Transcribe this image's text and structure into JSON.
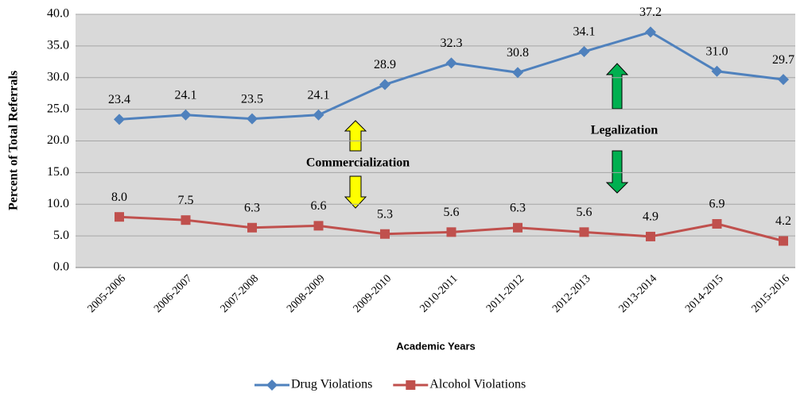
{
  "chart_data": {
    "type": "line",
    "y_label": "Percent of Total Referrals",
    "x_label": "Academic Years",
    "categories": [
      "2005-2006",
      "2006-2007",
      "2007-2008",
      "2008-2009",
      "2009-2010",
      "2010-2011",
      "2011-2012",
      "2012-2013",
      "2013-2014",
      "2014-2015",
      "2015-2016"
    ],
    "series": [
      {
        "name": "Drug Violations",
        "color": "#4f81bd",
        "marker": "diamond",
        "values": [
          23.4,
          24.1,
          23.5,
          24.1,
          28.9,
          32.3,
          30.8,
          34.1,
          37.2,
          31.0,
          29.7
        ],
        "value_labels": [
          "23.4",
          "24.1",
          "23.5",
          "24.1",
          "28.9",
          "32.3",
          "30.8",
          "34.1",
          "37.2",
          "31.0",
          "29.7"
        ]
      },
      {
        "name": "Alcohol Violations",
        "color": "#c0504d",
        "marker": "square",
        "values": [
          8.0,
          7.5,
          6.3,
          6.6,
          5.3,
          5.6,
          6.3,
          5.6,
          4.9,
          6.9,
          4.2
        ],
        "value_labels": [
          "8.0",
          "7.5",
          "6.3",
          "6.6",
          "5.3",
          "5.6",
          "6.3",
          "5.6",
          "4.9",
          "6.9",
          "4.2"
        ]
      }
    ],
    "ylim": [
      0,
      40
    ],
    "yticks": [
      {
        "value": 0,
        "label": "0.0"
      },
      {
        "value": 5,
        "label": "5.0"
      },
      {
        "value": 10,
        "label": "10.0"
      },
      {
        "value": 15,
        "label": "15.0"
      },
      {
        "value": 20,
        "label": "20.0"
      },
      {
        "value": 25,
        "label": "25.0"
      },
      {
        "value": 30,
        "label": "30.0"
      },
      {
        "value": 35,
        "label": "35.0"
      },
      {
        "value": 40,
        "label": "40.0"
      }
    ],
    "grid": true,
    "legend": "bottom",
    "annotations": [
      "Commercialization",
      "Legalization"
    ]
  }
}
